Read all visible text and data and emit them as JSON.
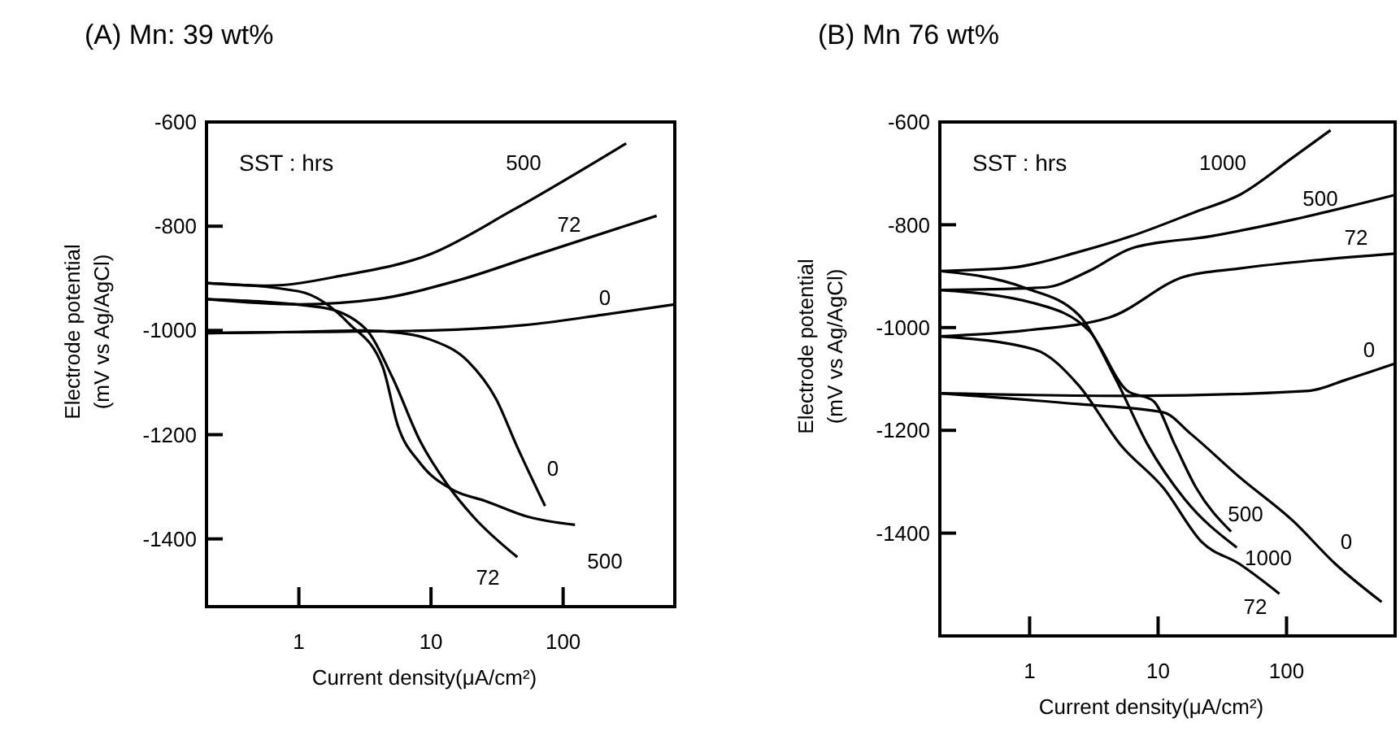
{
  "chart_data": [
    {
      "type": "line",
      "title": "(A) Mn: 39 wt%",
      "xlabel": "Current density(μA/cm²)",
      "ylabel": "Electrode potential (mV vs Ag/AgCl)",
      "legend_title": "SST : hrs",
      "log": "x",
      "grid": false,
      "line_style": "solid",
      "xlim": [
        0.2,
        700
      ],
      "xticks": [
        1,
        10,
        100
      ],
      "ylim": [
        -1530,
        -600
      ],
      "yticks": [
        -600,
        -800,
        -1000,
        -1200,
        -1400
      ],
      "series": [
        {
          "name": "500",
          "color": "#000000",
          "x": [
            0.2,
            0.58,
            2.2,
            10,
            41,
            300
          ],
          "values": [
            -909,
            -914,
            -894,
            -853,
            -770,
            -641
          ]
        },
        {
          "name": "72",
          "color": "#000000",
          "x": [
            0.2,
            1,
            3.9,
            16,
            66,
            510
          ],
          "values": [
            -940,
            -950,
            -940,
            -904,
            -853,
            -780
          ]
        },
        {
          "name": "0",
          "color": "#000000",
          "x": [
            0.2,
            1,
            10,
            50,
            200,
            700
          ],
          "values": [
            -1005,
            -1003,
            -1000,
            -990,
            -970,
            -950
          ]
        },
        {
          "name": "0",
          "color": "#000000",
          "x": [
            0.2,
            1,
            3,
            6,
            10,
            19,
            31,
            45,
            73
          ],
          "values": [
            -1005,
            -1003,
            -1000,
            -1005,
            -1018,
            -1059,
            -1131,
            -1224,
            -1337
          ]
        },
        {
          "name": "500",
          "color": "#000000",
          "x": [
            0.2,
            1,
            2.4,
            4.3,
            5.6,
            8.3,
            14.6,
            25.7,
            55,
            123
          ],
          "values": [
            -909,
            -925,
            -987,
            -1069,
            -1182,
            -1255,
            -1306,
            -1327,
            -1358,
            -1373
          ]
        },
        {
          "name": "72",
          "color": "#000000",
          "x": [
            0.2,
            1.5,
            3.2,
            5.1,
            8.3,
            13.3,
            21,
            45
          ],
          "values": [
            -940,
            -956,
            -997,
            -1090,
            -1213,
            -1296,
            -1358,
            -1435
          ]
        }
      ]
    },
    {
      "type": "line",
      "title": "(B) Mn  76 wt%",
      "xlabel": "Current density(μA/cm²)",
      "ylabel": "Electrode potential (mV vs Ag/AgCl)",
      "legend_title": "SST : hrs",
      "log": "x",
      "grid": false,
      "line_style": "solid",
      "xlim": [
        0.2,
        700
      ],
      "xticks": [
        1,
        10,
        100
      ],
      "ylim": [
        -1600,
        -600
      ],
      "yticks": [
        -600,
        -800,
        -1000,
        -1200,
        -1400
      ],
      "series": [
        {
          "name": "1000",
          "color": "#000000",
          "x": [
            0.2,
            0.75,
            2.4,
            6.2,
            20,
            43,
            112,
            220
          ],
          "values": [
            -890,
            -883,
            -853,
            -822,
            -774,
            -742,
            -669,
            -616
          ]
        },
        {
          "name": "500",
          "color": "#000000",
          "x": [
            0.2,
            1.3,
            2.9,
            6.2,
            26,
            112,
            700
          ],
          "values": [
            -927,
            -922,
            -890,
            -846,
            -822,
            -790,
            -742
          ]
        },
        {
          "name": "72",
          "color": "#000000",
          "x": [
            0.2,
            0.9,
            4.2,
            16,
            43,
            165,
            700
          ],
          "values": [
            -1017,
            -1006,
            -980,
            -901,
            -885,
            -869,
            -856
          ]
        },
        {
          "name": "0",
          "color": "#000000",
          "x": [
            0.2,
            6.2,
            150,
            295,
            700
          ],
          "values": [
            -1128,
            -1133,
            -1123,
            -1101,
            -1070
          ]
        },
        {
          "name": "500",
          "color": "#000000",
          "x": [
            0.2,
            1.1,
            2.9,
            5.7,
            9.2,
            13.5,
            19.8,
            37
          ],
          "values": [
            -927,
            -953,
            -1006,
            -1122,
            -1143,
            -1228,
            -1312,
            -1397
          ]
        },
        {
          "name": "1000",
          "color": "#000000",
          "x": [
            0.2,
            0.9,
            2.4,
            4.7,
            8.3,
            16,
            41
          ],
          "values": [
            -890,
            -922,
            -975,
            -1101,
            -1228,
            -1333,
            -1428
          ]
        },
        {
          "name": "72",
          "color": "#000000",
          "x": [
            0.2,
            1.1,
            2.4,
            5.1,
            11,
            22,
            43,
            88
          ],
          "values": [
            -1017,
            -1043,
            -1112,
            -1228,
            -1312,
            -1418,
            -1460,
            -1518
          ]
        },
        {
          "name": "0",
          "color": "#000000",
          "x": [
            0.2,
            2.4,
            11,
            18,
            43,
            112,
            240,
            550
          ],
          "values": [
            -1128,
            -1149,
            -1165,
            -1207,
            -1291,
            -1376,
            -1460,
            -1534
          ]
        }
      ]
    }
  ]
}
